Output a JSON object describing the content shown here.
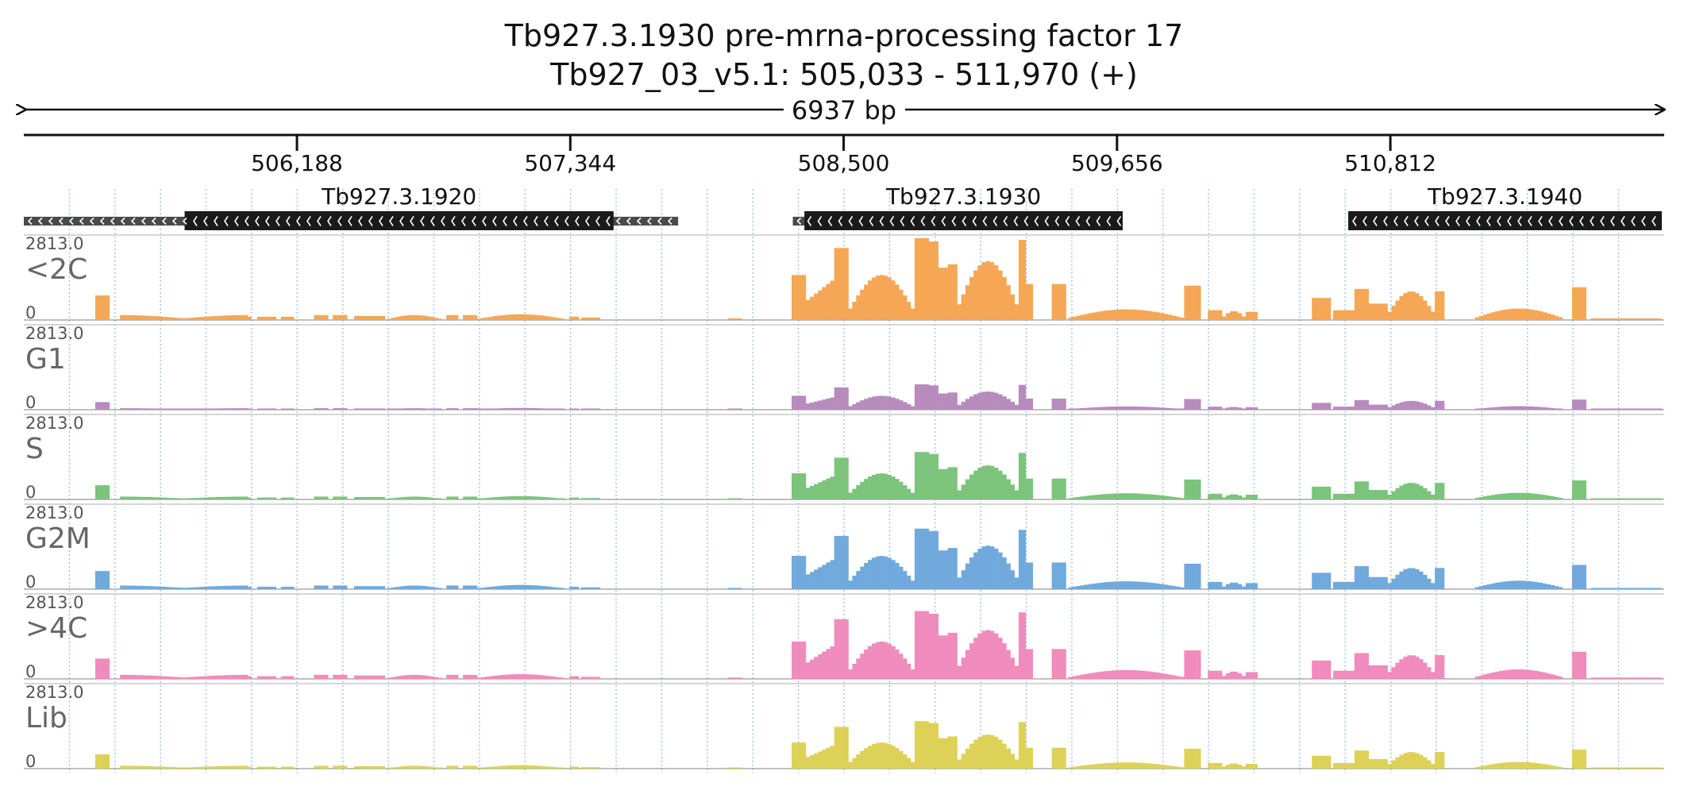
{
  "chart_data": {
    "type": "bar",
    "title": "Tb927.3.1930  pre-mrna-processing factor 17",
    "subtitle": "Tb927_03_v5.1: 505,033 - 511,970 (+)",
    "span_label": "6937 bp",
    "region": {
      "start": 505033,
      "end": 511970
    },
    "xticks": [
      {
        "pos": 506188,
        "label": "506,188"
      },
      {
        "pos": 507344,
        "label": "507,344"
      },
      {
        "pos": 508500,
        "label": "508,500"
      },
      {
        "pos": 509656,
        "label": "509,656"
      },
      {
        "pos": 510812,
        "label": "510,812"
      }
    ],
    "genes": [
      {
        "name": "Tb927.3.1920",
        "strand": "-",
        "utr": [
          505033,
          507800
        ],
        "cds": [
          505713,
          507527
        ]
      },
      {
        "name": "Tb927.3.1930",
        "strand": "-",
        "utr": [
          508285,
          509680
        ],
        "cds": [
          508334,
          509680
        ]
      },
      {
        "name": "Tb927.3.1940",
        "strand": "-",
        "utr": [
          510634,
          511960
        ],
        "cds": [
          510634,
          511960
        ]
      }
    ],
    "tracks": [
      {
        "name": "<2C",
        "max_label": "2813.0",
        "min_label": "0",
        "color": "#f5a755",
        "scale": 1.0
      },
      {
        "name": "G1",
        "max_label": "2813.0",
        "min_label": "0",
        "color": "#b88bbd",
        "scale": 0.31
      },
      {
        "name": "S",
        "max_label": "2813.0",
        "min_label": "0",
        "color": "#7cc47c",
        "scale": 0.58
      },
      {
        "name": "G2M",
        "max_label": "2813.0",
        "min_label": "0",
        "color": "#72a9dc",
        "scale": 0.74
      },
      {
        "name": ">4C",
        "max_label": "2813.0",
        "min_label": "0",
        "color": "#f08cbd",
        "scale": 0.83
      },
      {
        "name": "Lib",
        "max_label": "2813.0",
        "min_label": "0",
        "color": "#ddd257",
        "scale": 0.58
      }
    ],
    "coverage_segments": [
      {
        "start": 505335,
        "end": 505395,
        "shape": "flat",
        "v": 0.3
      },
      {
        "start": 505440,
        "end": 505980,
        "shape": "dip",
        "v": 0.06
      },
      {
        "start": 505980,
        "end": 505995,
        "shape": "flat",
        "v": 0.04
      },
      {
        "start": 506020,
        "end": 506100,
        "shape": "flat",
        "v": 0.04
      },
      {
        "start": 506120,
        "end": 506175,
        "shape": "flat",
        "v": 0.04
      },
      {
        "start": 506260,
        "end": 506320,
        "shape": "flat",
        "v": 0.06
      },
      {
        "start": 506340,
        "end": 506400,
        "shape": "flat",
        "v": 0.06
      },
      {
        "start": 506430,
        "end": 506560,
        "shape": "flat",
        "v": 0.05
      },
      {
        "start": 506570,
        "end": 506800,
        "shape": "hump",
        "v": 0.06
      },
      {
        "start": 506820,
        "end": 506870,
        "shape": "flat",
        "v": 0.06
      },
      {
        "start": 506890,
        "end": 506950,
        "shape": "flat",
        "v": 0.06
      },
      {
        "start": 506950,
        "end": 507320,
        "shape": "hump",
        "v": 0.07
      },
      {
        "start": 507340,
        "end": 507380,
        "shape": "flat",
        "v": 0.04
      },
      {
        "start": 507390,
        "end": 507470,
        "shape": "flat",
        "v": 0.03
      },
      {
        "start": 508010,
        "end": 508070,
        "shape": "flat",
        "v": 0.02
      },
      {
        "start": 508280,
        "end": 508340,
        "shape": "flat",
        "v": 0.55
      },
      {
        "start": 508340,
        "end": 508460,
        "shape": "ramp",
        "v": 0.5
      },
      {
        "start": 508460,
        "end": 508520,
        "shape": "flat",
        "v": 0.88
      },
      {
        "start": 508520,
        "end": 508800,
        "shape": "hump",
        "v": 0.55
      },
      {
        "start": 508800,
        "end": 508860,
        "shape": "flat",
        "v": 1.0
      },
      {
        "start": 508860,
        "end": 508900,
        "shape": "flat",
        "v": 0.96
      },
      {
        "start": 508900,
        "end": 508940,
        "shape": "flat",
        "v": 0.64
      },
      {
        "start": 508940,
        "end": 508980,
        "shape": "flat",
        "v": 0.68
      },
      {
        "start": 508980,
        "end": 509240,
        "shape": "hump",
        "v": 0.72
      },
      {
        "start": 509240,
        "end": 509270,
        "shape": "flat",
        "v": 0.98
      },
      {
        "start": 509270,
        "end": 509300,
        "shape": "flat",
        "v": 0.44
      },
      {
        "start": 509380,
        "end": 509440,
        "shape": "flat",
        "v": 0.44
      },
      {
        "start": 509450,
        "end": 509940,
        "shape": "hump",
        "v": 0.13
      },
      {
        "start": 509940,
        "end": 510010,
        "shape": "flat",
        "v": 0.42
      },
      {
        "start": 510040,
        "end": 510100,
        "shape": "flat",
        "v": 0.12
      },
      {
        "start": 510100,
        "end": 510200,
        "shape": "hump",
        "v": 0.11
      },
      {
        "start": 510200,
        "end": 510250,
        "shape": "flat",
        "v": 0.1
      },
      {
        "start": 510480,
        "end": 510560,
        "shape": "flat",
        "v": 0.27
      },
      {
        "start": 510570,
        "end": 510660,
        "shape": "flat",
        "v": 0.12
      },
      {
        "start": 510660,
        "end": 510720,
        "shape": "flat",
        "v": 0.38
      },
      {
        "start": 510720,
        "end": 510800,
        "shape": "flat",
        "v": 0.2
      },
      {
        "start": 510800,
        "end": 511000,
        "shape": "hump",
        "v": 0.35
      },
      {
        "start": 511000,
        "end": 511040,
        "shape": "flat",
        "v": 0.35
      },
      {
        "start": 511170,
        "end": 511540,
        "shape": "hump",
        "v": 0.14
      },
      {
        "start": 511580,
        "end": 511640,
        "shape": "flat",
        "v": 0.4
      },
      {
        "start": 511660,
        "end": 511960,
        "shape": "flat",
        "v": 0.02
      }
    ],
    "grid": true
  }
}
